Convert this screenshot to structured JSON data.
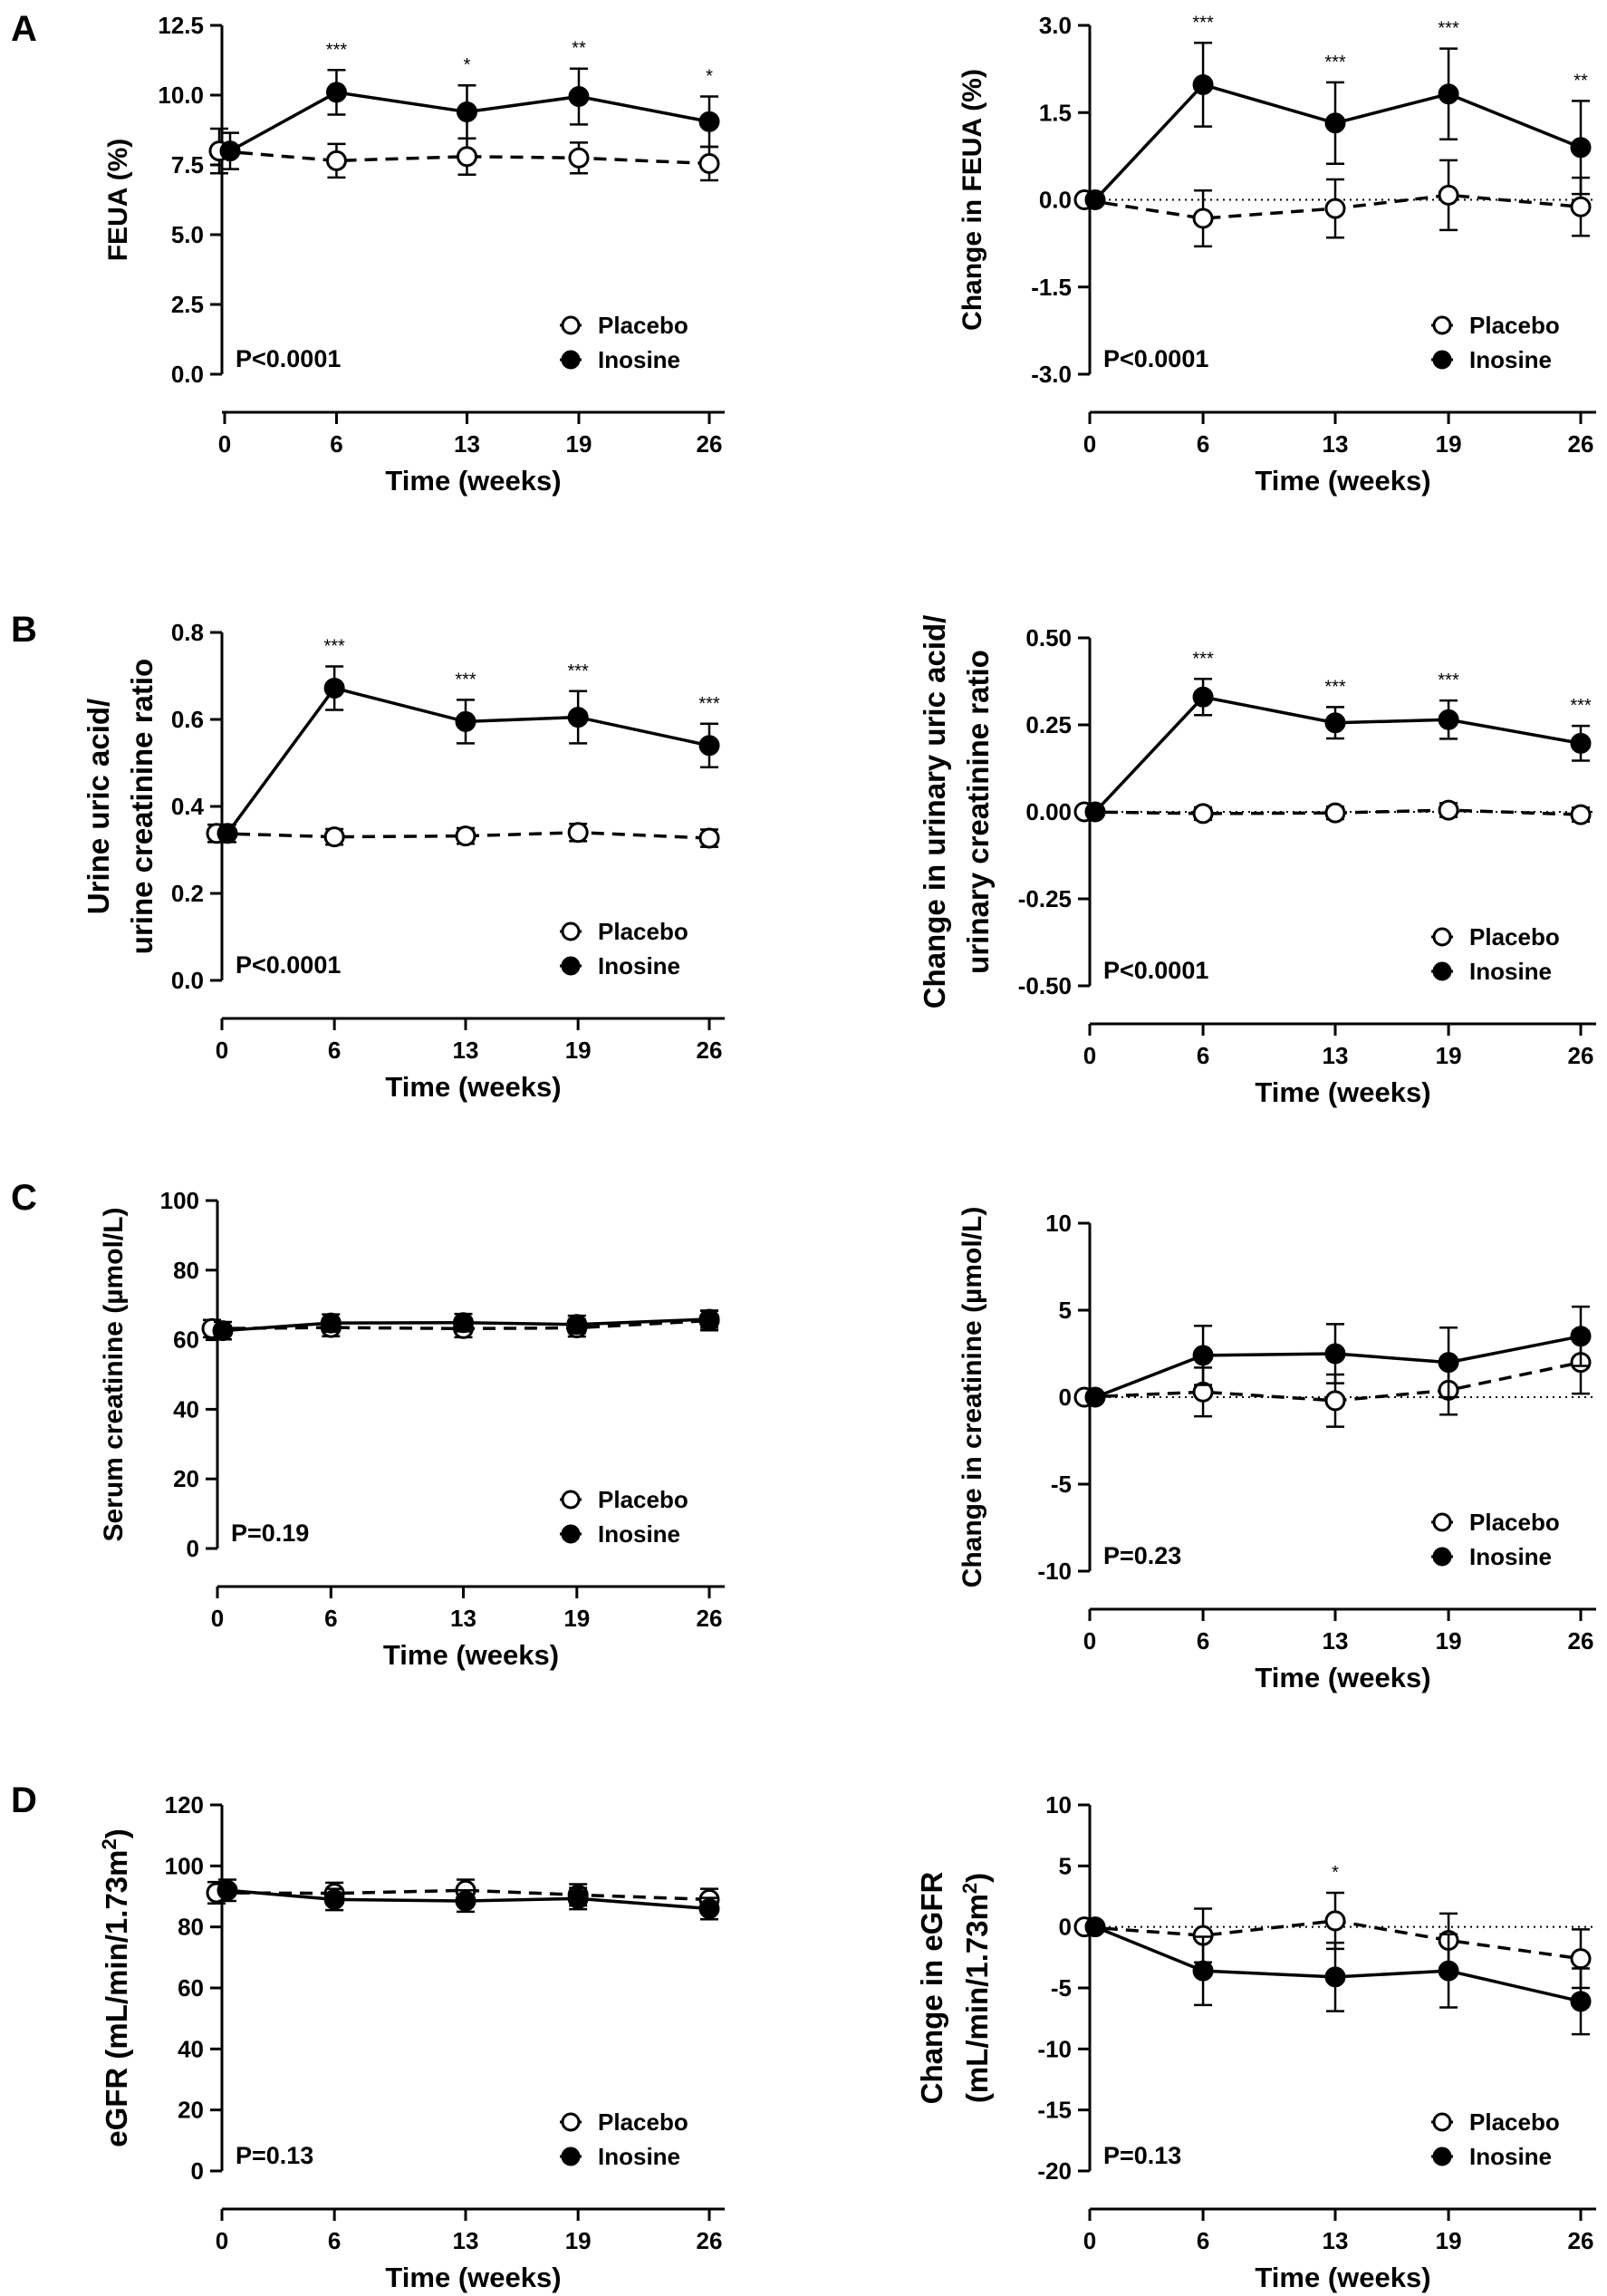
{
  "panel_letters": [
    "A",
    "B",
    "C",
    "D"
  ],
  "chart_data": [
    {
      "type": "line",
      "panel": "A",
      "column": "left",
      "x": [
        0,
        6,
        13,
        19,
        26
      ],
      "xlabel": "Time (weeks)",
      "ylabel": [
        "FEUA (%)"
      ],
      "ylim": [
        0,
        12.5
      ],
      "yticks": [
        0,
        2.5,
        5,
        7.5,
        10,
        12.5
      ],
      "ytick_labels": [
        "0.0",
        "2.5",
        "5.0",
        "7.5",
        "10.0",
        "12.5"
      ],
      "zero_line": false,
      "pvalue": "P<0.0001",
      "legend_position": "bottom-right",
      "series": [
        {
          "name": "Placebo",
          "marker": "open",
          "style": "dashed",
          "values": [
            8.0,
            7.65,
            7.8,
            7.75,
            7.55
          ],
          "err": [
            0.8,
            0.6,
            0.65,
            0.55,
            0.6
          ]
        },
        {
          "name": "Inosine",
          "marker": "filled",
          "style": "solid",
          "values": [
            8.0,
            10.1,
            9.4,
            9.95,
            9.05
          ],
          "err": [
            0.65,
            0.8,
            0.95,
            1.0,
            0.9
          ]
        }
      ],
      "annotations": [
        {
          "x": 6,
          "text": "***"
        },
        {
          "x": 13,
          "text": "*"
        },
        {
          "x": 19,
          "text": "**"
        },
        {
          "x": 26,
          "text": "*"
        }
      ]
    },
    {
      "type": "line",
      "panel": "A",
      "column": "right",
      "x": [
        0,
        6,
        13,
        19,
        26
      ],
      "xlabel": "Time (weeks)",
      "ylabel": [
        "Change in FEUA (%)"
      ],
      "ylim": [
        -3,
        3
      ],
      "yticks": [
        -3,
        -1.5,
        0,
        1.5,
        3
      ],
      "ytick_labels": [
        "-3.0",
        "-1.5",
        "0.0",
        "1.5",
        "3.0"
      ],
      "zero_line": true,
      "pvalue": "P<0.0001",
      "legend_position": "bottom-right",
      "series": [
        {
          "name": "Placebo",
          "marker": "open",
          "style": "dashed",
          "values": [
            0,
            -0.32,
            -0.15,
            0.08,
            -0.12
          ],
          "err": [
            0,
            0.48,
            0.5,
            0.6,
            0.5
          ]
        },
        {
          "name": "Inosine",
          "marker": "filled",
          "style": "solid",
          "values": [
            0,
            1.98,
            1.32,
            1.82,
            0.9
          ],
          "err": [
            0,
            0.72,
            0.7,
            0.78,
            0.8
          ]
        }
      ],
      "annotations": [
        {
          "x": 6,
          "text": "***"
        },
        {
          "x": 13,
          "text": "***"
        },
        {
          "x": 19,
          "text": "***"
        },
        {
          "x": 26,
          "text": "**"
        }
      ]
    },
    {
      "type": "line",
      "panel": "B",
      "column": "left",
      "x": [
        0,
        6,
        13,
        19,
        26
      ],
      "xlabel": "Time (weeks)",
      "ylabel": [
        "Urine uric acid/",
        "urine creatinine ratio"
      ],
      "ylim": [
        0,
        0.8
      ],
      "yticks": [
        0,
        0.2,
        0.4,
        0.6,
        0.8
      ],
      "ytick_labels": [
        "0.0",
        "0.2",
        "0.4",
        "0.6",
        "0.8"
      ],
      "zero_line": false,
      "pvalue": "P<0.0001",
      "legend_position": "bottom-right",
      "series": [
        {
          "name": "Placebo",
          "marker": "open",
          "style": "dashed",
          "values": [
            0.338,
            0.33,
            0.332,
            0.34,
            0.327
          ],
          "err": [
            0.02,
            0.018,
            0.018,
            0.02,
            0.02
          ]
        },
        {
          "name": "Inosine",
          "marker": "filled",
          "style": "solid",
          "values": [
            0.338,
            0.672,
            0.595,
            0.605,
            0.54
          ],
          "err": [
            0.02,
            0.05,
            0.05,
            0.06,
            0.05
          ]
        }
      ],
      "annotations": [
        {
          "x": 6,
          "text": "***"
        },
        {
          "x": 13,
          "text": "***"
        },
        {
          "x": 19,
          "text": "***"
        },
        {
          "x": 26,
          "text": "***"
        }
      ]
    },
    {
      "type": "line",
      "panel": "B",
      "column": "right",
      "x": [
        0,
        6,
        13,
        19,
        26
      ],
      "xlabel": "Time (weeks)",
      "ylabel": [
        "Change in urinary uric acid/",
        "urinary creatinine ratio"
      ],
      "ylim": [
        -0.5,
        0.5
      ],
      "yticks": [
        -0.5,
        -0.25,
        0,
        0.25,
        0.5
      ],
      "ytick_labels": [
        "-0.50",
        "-0.25",
        "0.00",
        "0.25",
        "0.50"
      ],
      "zero_line": true,
      "pvalue": "P<0.0001",
      "legend_position": "bottom-right",
      "series": [
        {
          "name": "Placebo",
          "marker": "open",
          "style": "dashed",
          "values": [
            0,
            -0.005,
            -0.003,
            0.005,
            -0.008
          ],
          "err": [
            0,
            0.018,
            0.018,
            0.02,
            0.02
          ]
        },
        {
          "name": "Inosine",
          "marker": "filled",
          "style": "solid",
          "values": [
            0,
            0.33,
            0.256,
            0.265,
            0.197
          ],
          "err": [
            0,
            0.052,
            0.045,
            0.055,
            0.05
          ]
        }
      ],
      "annotations": [
        {
          "x": 6,
          "text": "***"
        },
        {
          "x": 13,
          "text": "***"
        },
        {
          "x": 19,
          "text": "***"
        },
        {
          "x": 26,
          "text": "***"
        }
      ]
    },
    {
      "type": "line",
      "panel": "C",
      "column": "left",
      "x": [
        0,
        6,
        13,
        19,
        26
      ],
      "xlabel": "Time (weeks)",
      "ylabel": [
        "Serum creatinine (µmol/L)"
      ],
      "ylim": [
        0,
        100
      ],
      "yticks": [
        0,
        20,
        40,
        60,
        80,
        100
      ],
      "ytick_labels": [
        "0",
        "20",
        "40",
        "60",
        "80",
        "100"
      ],
      "zero_line": false,
      "pvalue": "P=0.19",
      "legend_position": "bottom-right",
      "series": [
        {
          "name": "Placebo",
          "marker": "open",
          "style": "dashed",
          "values": [
            63.2,
            63.5,
            63.2,
            63.4,
            65.5
          ],
          "err": [
            2.5,
            2.5,
            2.5,
            2.5,
            2.8
          ]
        },
        {
          "name": "Inosine",
          "marker": "filled",
          "style": "solid",
          "values": [
            62.6,
            64.8,
            64.9,
            64.4,
            65.9
          ],
          "err": [
            2.5,
            2.5,
            2.5,
            2.5,
            2.5
          ]
        }
      ],
      "annotations": []
    },
    {
      "type": "line",
      "panel": "C",
      "column": "right",
      "x": [
        0,
        6,
        13,
        19,
        26
      ],
      "xlabel": "Time (weeks)",
      "ylabel": [
        "Change in creatinine (µmol/L)"
      ],
      "ylim": [
        -10,
        10
      ],
      "yticks": [
        -10,
        -5,
        0,
        5,
        10
      ],
      "ytick_labels": [
        "-10",
        "-5",
        "0",
        "5",
        "10"
      ],
      "zero_line": true,
      "pvalue": "P=0.23",
      "legend_position": "bottom-right",
      "series": [
        {
          "name": "Placebo",
          "marker": "open",
          "style": "dashed",
          "values": [
            0,
            0.3,
            -0.2,
            0.4,
            2.0
          ],
          "err": [
            0,
            1.4,
            1.5,
            1.4,
            1.8
          ]
        },
        {
          "name": "Inosine",
          "marker": "filled",
          "style": "solid",
          "values": [
            0,
            2.4,
            2.5,
            2.0,
            3.5
          ],
          "err": [
            0,
            1.7,
            1.7,
            2.0,
            1.7
          ]
        }
      ],
      "annotations": []
    },
    {
      "type": "line",
      "panel": "D",
      "column": "left",
      "x": [
        0,
        6,
        13,
        19,
        26
      ],
      "xlabel": "Time (weeks)",
      "ylabel": [
        "eGFR (mL/min/1.73m",
        "2",
        ")"
      ],
      "ylim": [
        0,
        120
      ],
      "yticks": [
        0,
        20,
        40,
        60,
        80,
        100,
        120
      ],
      "ytick_labels": [
        "0",
        "20",
        "40",
        "60",
        "80",
        "100",
        "120"
      ],
      "zero_line": false,
      "pvalue": "P=0.13",
      "legend_position": "bottom-right",
      "series": [
        {
          "name": "Placebo",
          "marker": "open",
          "style": "dashed",
          "values": [
            91.2,
            91.0,
            92.0,
            90.5,
            89.0
          ],
          "err": [
            3.5,
            3.5,
            3.5,
            3.5,
            3.5
          ]
        },
        {
          "name": "Inosine",
          "marker": "filled",
          "style": "solid",
          "values": [
            92.0,
            89.0,
            88.5,
            89.3,
            86.0
          ],
          "err": [
            3.5,
            3.5,
            3.5,
            3.5,
            3.5
          ]
        }
      ],
      "annotations": []
    },
    {
      "type": "line",
      "panel": "D",
      "column": "right",
      "x": [
        0,
        6,
        13,
        19,
        26
      ],
      "xlabel": "Time (weeks)",
      "ylabel": [
        "Change in eGFR",
        "(mL/min/1.73m",
        "2",
        ")"
      ],
      "ylim": [
        -20,
        10
      ],
      "yticks": [
        -20,
        -15,
        -10,
        -5,
        0,
        5,
        10
      ],
      "ytick_labels": [
        "-20",
        "-15",
        "-10",
        "-5",
        "0",
        "5",
        "10"
      ],
      "zero_line": true,
      "pvalue": "P=0.13",
      "legend_position": "bottom-right",
      "series": [
        {
          "name": "Placebo",
          "marker": "open",
          "style": "dashed",
          "values": [
            0,
            -0.7,
            0.5,
            -1.1,
            -2.6
          ],
          "err": [
            0,
            2.2,
            2.3,
            2.2,
            2.4
          ]
        },
        {
          "name": "Inosine",
          "marker": "filled",
          "style": "solid",
          "values": [
            0,
            -3.6,
            -4.1,
            -3.6,
            -6.1
          ],
          "err": [
            0,
            2.8,
            2.8,
            3.0,
            2.7
          ]
        }
      ],
      "annotations": [
        {
          "x": 13,
          "text": "*"
        }
      ]
    }
  ]
}
